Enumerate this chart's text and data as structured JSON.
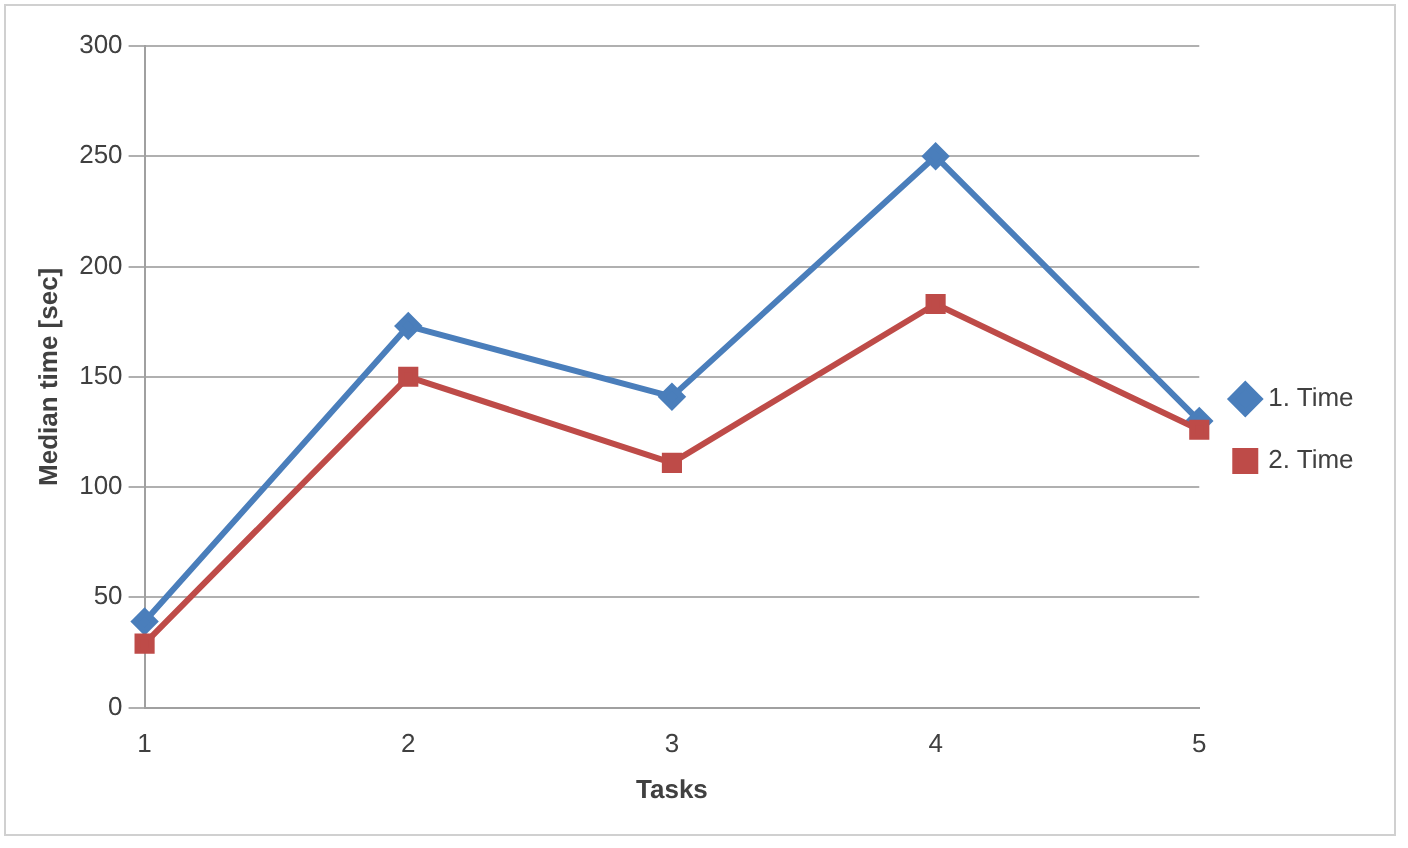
{
  "chart_data": {
    "type": "line",
    "xlabel": "Tasks",
    "ylabel": "Median time [sec]",
    "categories": [
      "1",
      "2",
      "3",
      "4",
      "5"
    ],
    "series": [
      {
        "name": "1. Time",
        "color": "#4a7ebb",
        "marker": "diamond",
        "values": [
          39,
          173,
          141,
          250,
          130
        ]
      },
      {
        "name": "2. Time",
        "color": "#be4b48",
        "marker": "square",
        "values": [
          29,
          150,
          111,
          183,
          126
        ]
      }
    ],
    "ylim": [
      0,
      300
    ],
    "yticks": [
      0,
      50,
      100,
      150,
      200,
      250,
      300
    ],
    "grid": "y",
    "legend": "right"
  }
}
